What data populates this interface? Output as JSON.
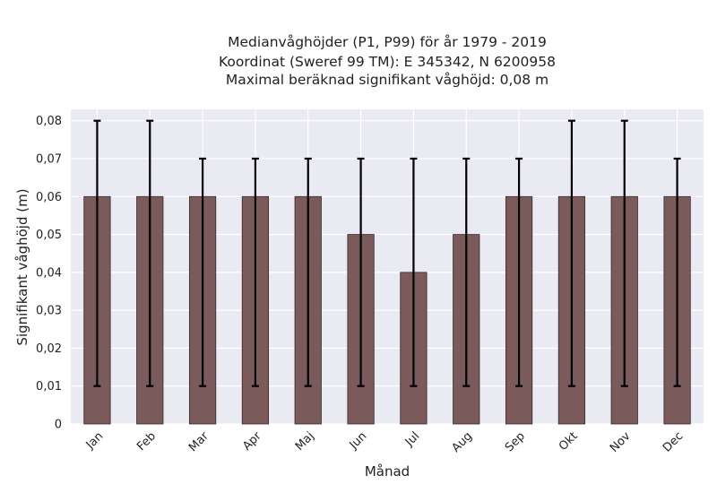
{
  "chart_data": {
    "type": "bar",
    "title_lines": [
      "Medianvåghöjder (P1, P99) för år 1979 - 2019",
      "Koordinat (Sweref 99 TM): E 345342, N 6200958",
      "Maximal beräknad signifikant våghöjd: 0,08 m"
    ],
    "xlabel": "Månad",
    "ylabel": "Signifikant våghöjd (m)",
    "categories": [
      "Jan",
      "Feb",
      "Mar",
      "Apr",
      "Maj",
      "Jun",
      "Jul",
      "Aug",
      "Sep",
      "Okt",
      "Nov",
      "Dec"
    ],
    "values": [
      0.06,
      0.06,
      0.06,
      0.06,
      0.06,
      0.05,
      0.04,
      0.05,
      0.06,
      0.06,
      0.06,
      0.06
    ],
    "p1": [
      0.01,
      0.01,
      0.01,
      0.01,
      0.01,
      0.01,
      0.01,
      0.01,
      0.01,
      0.01,
      0.01,
      0.01
    ],
    "p99": [
      0.08,
      0.08,
      0.07,
      0.07,
      0.07,
      0.07,
      0.07,
      0.07,
      0.07,
      0.08,
      0.08,
      0.07
    ],
    "ylim": [
      0,
      0.083
    ],
    "yticks": [
      0,
      0.01,
      0.02,
      0.03,
      0.04,
      0.05,
      0.06,
      0.07,
      0.08
    ],
    "ytick_labels": [
      "0",
      "0,01",
      "0,02",
      "0,03",
      "0,04",
      "0,05",
      "0,06",
      "0,07",
      "0,08"
    ],
    "grid": true,
    "colors": {
      "bar": "#7a5a5a",
      "plot_background": "#eaeaf2",
      "error_bar": "#000000"
    }
  }
}
